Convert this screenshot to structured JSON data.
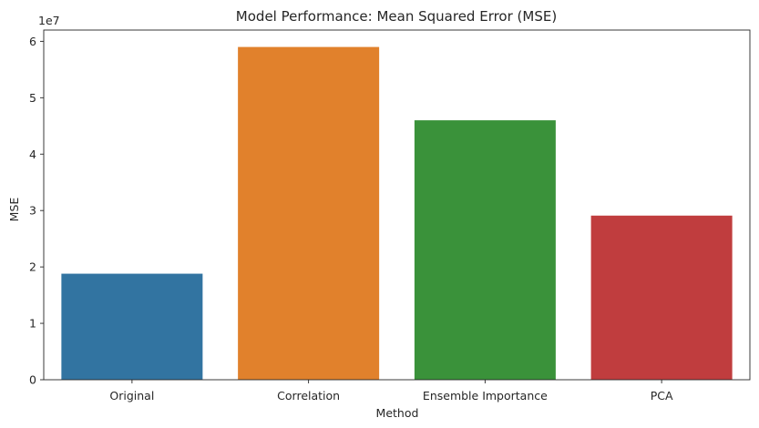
{
  "chart_data": {
    "type": "bar",
    "title": "Model Performance: Mean Squared Error (MSE)",
    "xlabel": "Method",
    "ylabel": "MSE",
    "y_offset_label": "1e7",
    "y_scale": 10000000,
    "categories": [
      "Original",
      "Correlation",
      "Ensemble Importance",
      "PCA"
    ],
    "values": [
      18800000,
      59000000,
      46000000,
      29100000
    ],
    "colors": [
      "#3274a1",
      "#e1812c",
      "#3a923a",
      "#c03d3e"
    ],
    "ylim": [
      0,
      62000000
    ],
    "yticks": [
      {
        "value": 0,
        "label": "0"
      },
      {
        "value": 10000000,
        "label": "1"
      },
      {
        "value": 20000000,
        "label": "2"
      },
      {
        "value": 30000000,
        "label": "3"
      },
      {
        "value": 40000000,
        "label": "4"
      },
      {
        "value": 50000000,
        "label": "5"
      },
      {
        "value": 60000000,
        "label": "6"
      }
    ],
    "grid": false,
    "legend": "none"
  }
}
